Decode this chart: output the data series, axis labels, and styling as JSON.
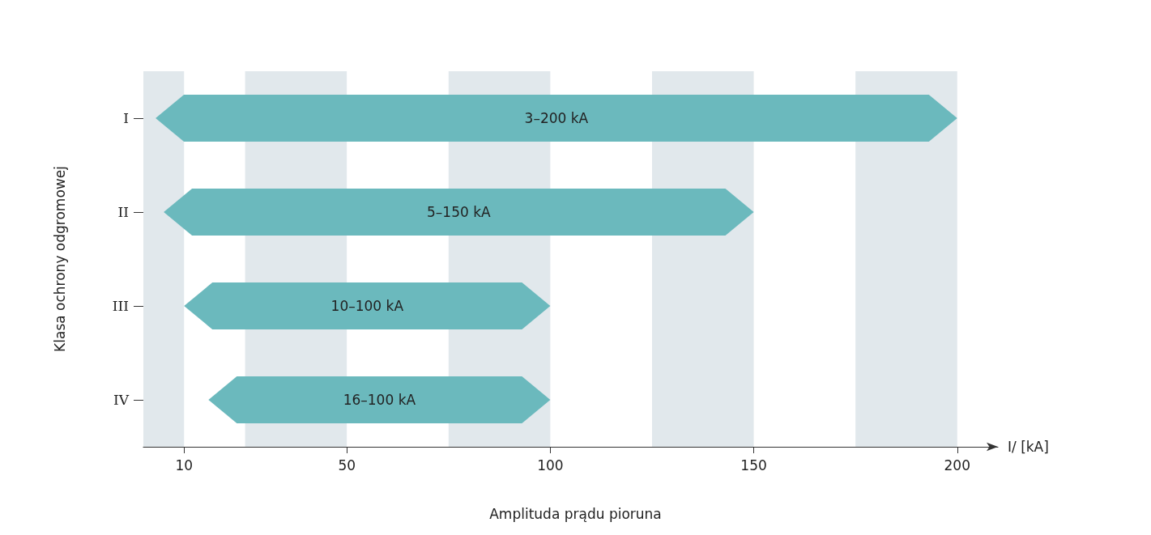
{
  "chart_data": {
    "type": "bar",
    "orientation": "horizontal",
    "xlabel": "I/ [kA]",
    "ylabel": "Klasa ochrony odgromowej",
    "annotations": [
      "Amplituda prądu pioruna"
    ],
    "categories": [
      "I",
      "II",
      "III",
      "IV"
    ],
    "base": [
      3,
      5,
      10,
      16
    ],
    "values": [
      197,
      145,
      90,
      84
    ],
    "value_labels": [
      "3–200 kA",
      "5–150 kA",
      "10–100 kA",
      "16–100 kA"
    ],
    "color": "#6bb9bd",
    "xlim": [
      0,
      210
    ],
    "xticks": [
      10,
      50,
      100,
      150,
      200
    ],
    "bands": [
      {
        "axis": "x",
        "from": 0,
        "to": 10,
        "color": "#e1e8ec"
      },
      {
        "axis": "x",
        "from": 25,
        "to": 50,
        "color": "#e1e8ec"
      },
      {
        "axis": "x",
        "from": 75,
        "to": 100,
        "color": "#e1e8ec"
      },
      {
        "axis": "x",
        "from": 125,
        "to": 150,
        "color": "#e1e8ec"
      },
      {
        "axis": "x",
        "from": 175,
        "to": 200,
        "color": "#e1e8ec"
      }
    ],
    "grid": false
  }
}
